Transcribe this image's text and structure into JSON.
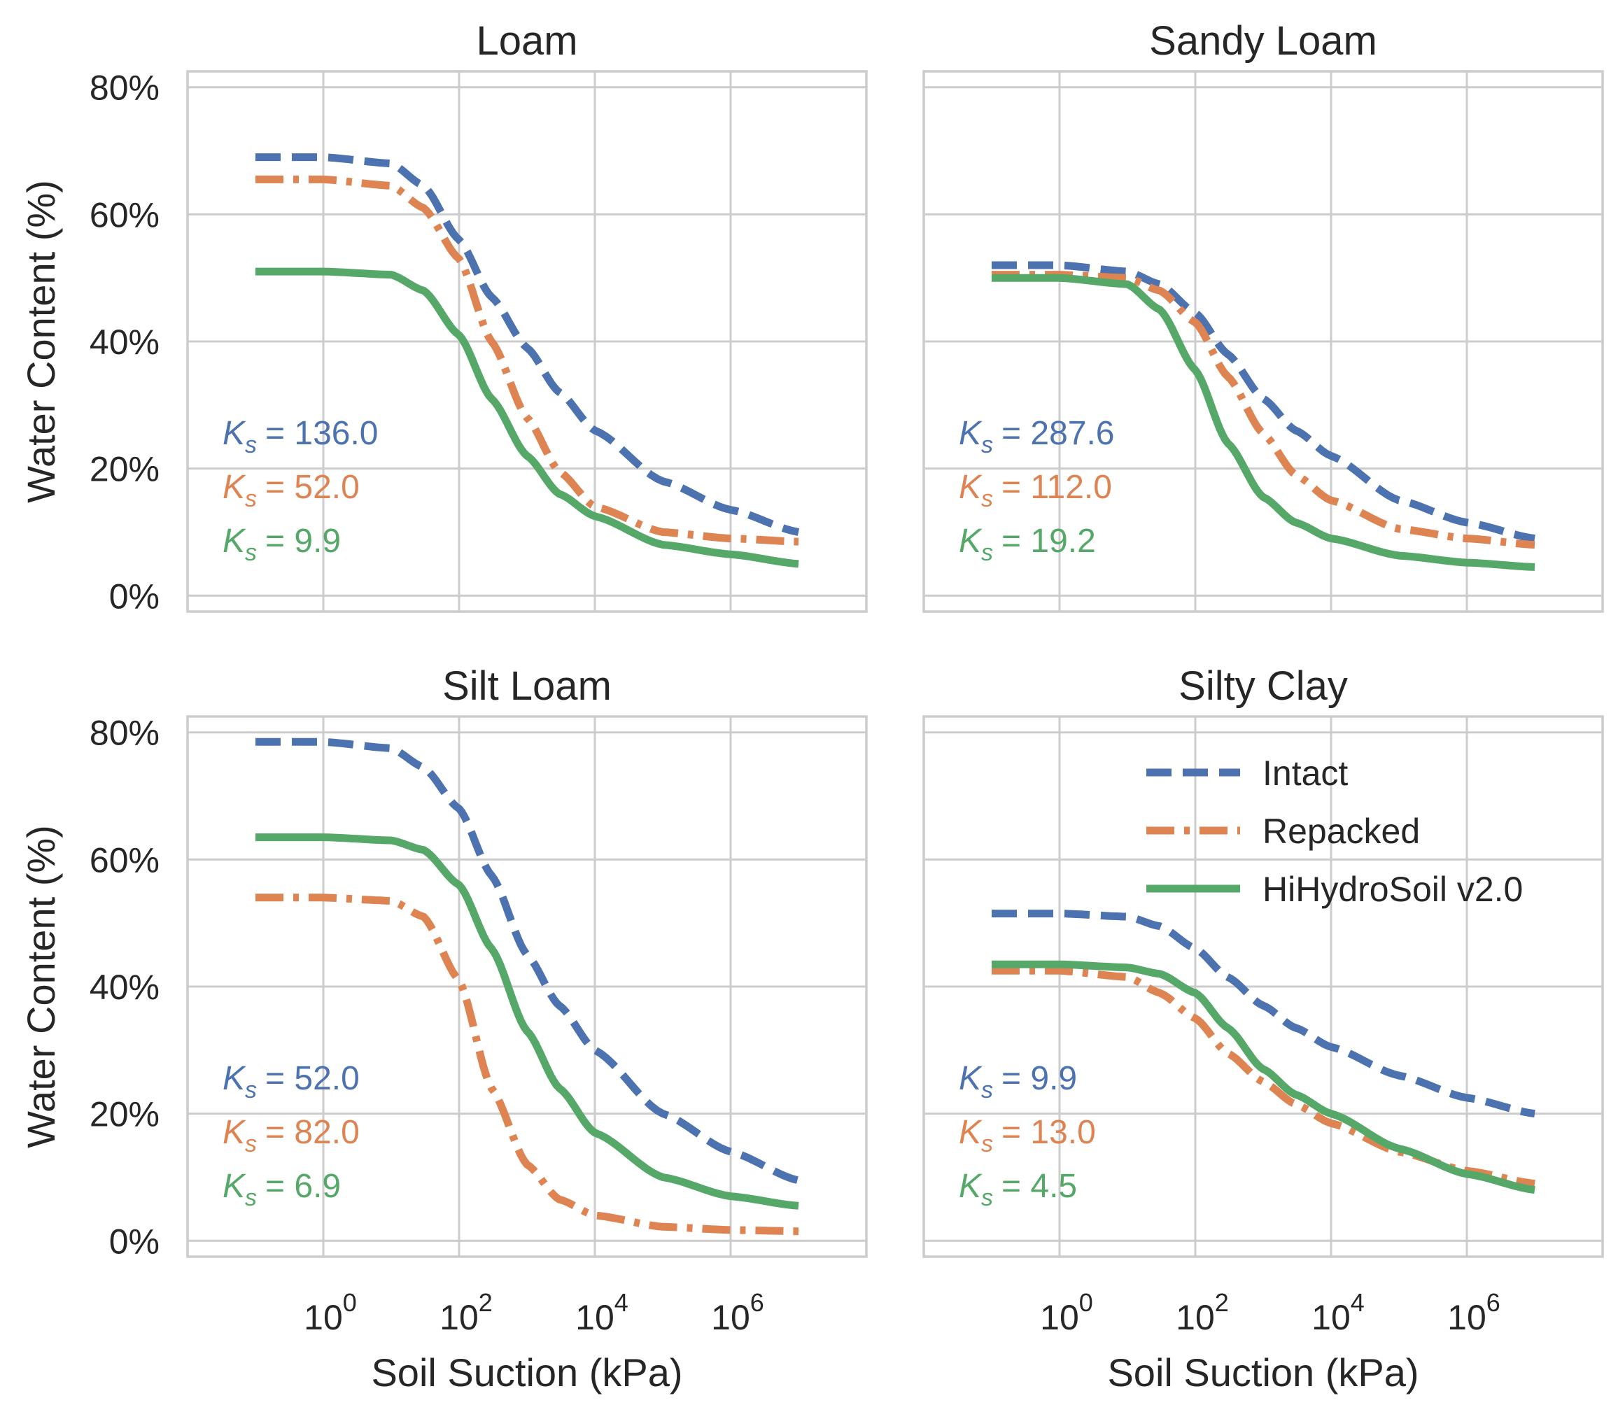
{
  "chart_data": [
    {
      "type": "line",
      "title": "Loam",
      "xlabel": "",
      "ylabel": "Water Content (%)",
      "xscale": "log",
      "xlim": [
        0.01,
        100000000
      ],
      "ylim": [
        -0.025,
        0.825
      ],
      "yticks": [
        "0%",
        "20%",
        "40%",
        "60%",
        "80%"
      ],
      "xticks": [],
      "series": [
        {
          "name": "Intact",
          "style": "dashed",
          "color": "#4c72b0",
          "x": [
            0.1,
            1,
            10,
            30,
            100,
            300,
            1000,
            3000,
            10000,
            100000,
            1000000,
            10000000
          ],
          "y": [
            0.69,
            0.69,
            0.68,
            0.645,
            0.56,
            0.47,
            0.39,
            0.32,
            0.26,
            0.18,
            0.135,
            0.1
          ]
        },
        {
          "name": "Repacked",
          "style": "dashdot",
          "color": "#dd8452",
          "x": [
            0.1,
            1,
            10,
            30,
            100,
            300,
            1000,
            3000,
            10000,
            100000,
            1000000,
            10000000
          ],
          "y": [
            0.655,
            0.655,
            0.645,
            0.61,
            0.53,
            0.4,
            0.28,
            0.195,
            0.14,
            0.1,
            0.09,
            0.085
          ]
        },
        {
          "name": "HiHydroSoil v2.0",
          "style": "solid",
          "color": "#55a868",
          "x": [
            0.1,
            1,
            10,
            30,
            100,
            300,
            1000,
            3000,
            10000,
            100000,
            1000000,
            10000000
          ],
          "y": [
            0.51,
            0.51,
            0.505,
            0.48,
            0.41,
            0.31,
            0.22,
            0.16,
            0.125,
            0.08,
            0.065,
            0.05
          ]
        }
      ],
      "annotations": [
        {
          "label": "K_s = 136.0",
          "sym": "K",
          "sub": "s",
          "value": "= 136.0",
          "color": "#4c72b0"
        },
        {
          "label": "K_s = 52.0",
          "sym": "K",
          "sub": "s",
          "value": "= 52.0",
          "color": "#dd8452"
        },
        {
          "label": "K_s = 9.9",
          "sym": "K",
          "sub": "s",
          "value": "= 9.9",
          "color": "#55a868"
        }
      ]
    },
    {
      "type": "line",
      "title": "Sandy Loam",
      "xlabel": "",
      "ylabel": "",
      "xscale": "log",
      "xlim": [
        0.01,
        100000000
      ],
      "ylim": [
        -0.025,
        0.825
      ],
      "yticks": [],
      "xticks": [],
      "series": [
        {
          "name": "Intact",
          "style": "dashed",
          "color": "#4c72b0",
          "x": [
            0.1,
            1,
            10,
            30,
            100,
            300,
            1000,
            3000,
            10000,
            100000,
            1000000,
            10000000
          ],
          "y": [
            0.52,
            0.52,
            0.51,
            0.49,
            0.445,
            0.38,
            0.31,
            0.26,
            0.22,
            0.15,
            0.115,
            0.09
          ]
        },
        {
          "name": "Repacked",
          "style": "dashdot",
          "color": "#dd8452",
          "x": [
            0.1,
            1,
            10,
            30,
            100,
            300,
            1000,
            3000,
            10000,
            100000,
            1000000,
            10000000
          ],
          "y": [
            0.505,
            0.505,
            0.5,
            0.48,
            0.43,
            0.345,
            0.255,
            0.19,
            0.15,
            0.105,
            0.09,
            0.08
          ]
        },
        {
          "name": "HiHydroSoil v2.0",
          "style": "solid",
          "color": "#55a868",
          "x": [
            0.1,
            1,
            10,
            30,
            100,
            300,
            1000,
            3000,
            10000,
            100000,
            1000000,
            10000000
          ],
          "y": [
            0.5,
            0.5,
            0.49,
            0.45,
            0.355,
            0.24,
            0.155,
            0.115,
            0.09,
            0.063,
            0.052,
            0.045
          ]
        }
      ],
      "annotations": [
        {
          "label": "K_s = 287.6",
          "sym": "K",
          "sub": "s",
          "value": "= 287.6",
          "color": "#4c72b0"
        },
        {
          "label": "K_s = 112.0",
          "sym": "K",
          "sub": "s",
          "value": "= 112.0",
          "color": "#dd8452"
        },
        {
          "label": "K_s = 19.2",
          "sym": "K",
          "sub": "s",
          "value": "= 19.2",
          "color": "#55a868"
        }
      ]
    },
    {
      "type": "line",
      "title": "Silt Loam",
      "xlabel": "Soil Suction (kPa)",
      "ylabel": "Water Content (%)",
      "xscale": "log",
      "xlim": [
        0.01,
        100000000
      ],
      "ylim": [
        -0.025,
        0.825
      ],
      "yticks": [
        "0%",
        "20%",
        "40%",
        "60%",
        "80%"
      ],
      "xticks": [
        {
          "base": "10",
          "exp": "0",
          "value": 1
        },
        {
          "base": "10",
          "exp": "2",
          "value": 100
        },
        {
          "base": "10",
          "exp": "4",
          "value": 10000
        },
        {
          "base": "10",
          "exp": "6",
          "value": 1000000
        }
      ],
      "series": [
        {
          "name": "Intact",
          "style": "dashed",
          "color": "#4c72b0",
          "x": [
            0.1,
            1,
            10,
            30,
            100,
            300,
            1000,
            3000,
            10000,
            100000,
            1000000,
            10000000
          ],
          "y": [
            0.785,
            0.785,
            0.775,
            0.745,
            0.68,
            0.575,
            0.45,
            0.37,
            0.3,
            0.2,
            0.14,
            0.095
          ]
        },
        {
          "name": "Repacked",
          "style": "dashdot",
          "color": "#dd8452",
          "x": [
            0.1,
            1,
            10,
            30,
            100,
            300,
            1000,
            3000,
            10000,
            100000,
            1000000,
            10000000
          ],
          "y": [
            0.54,
            0.54,
            0.535,
            0.51,
            0.41,
            0.24,
            0.12,
            0.065,
            0.04,
            0.022,
            0.017,
            0.015
          ]
        },
        {
          "name": "HiHydroSoil v2.0",
          "style": "solid",
          "color": "#55a868",
          "x": [
            0.1,
            1,
            10,
            30,
            100,
            300,
            1000,
            3000,
            10000,
            100000,
            1000000,
            10000000
          ],
          "y": [
            0.635,
            0.635,
            0.63,
            0.615,
            0.56,
            0.46,
            0.33,
            0.24,
            0.17,
            0.1,
            0.07,
            0.055
          ]
        }
      ],
      "annotations": [
        {
          "label": "K_s = 52.0",
          "sym": "K",
          "sub": "s",
          "value": "= 52.0",
          "color": "#4c72b0"
        },
        {
          "label": "K_s = 82.0",
          "sym": "K",
          "sub": "s",
          "value": "= 82.0",
          "color": "#dd8452"
        },
        {
          "label": "K_s = 6.9",
          "sym": "K",
          "sub": "s",
          "value": "= 6.9",
          "color": "#55a868"
        }
      ]
    },
    {
      "type": "line",
      "title": "Silty Clay",
      "xlabel": "Soil Suction (kPa)",
      "ylabel": "",
      "xscale": "log",
      "xlim": [
        0.01,
        100000000
      ],
      "ylim": [
        -0.025,
        0.825
      ],
      "yticks": [],
      "xticks": [
        {
          "base": "10",
          "exp": "0",
          "value": 1
        },
        {
          "base": "10",
          "exp": "2",
          "value": 100
        },
        {
          "base": "10",
          "exp": "4",
          "value": 10000
        },
        {
          "base": "10",
          "exp": "6",
          "value": 1000000
        }
      ],
      "legend": {
        "placement": "upper-right",
        "entries": [
          "Intact",
          "Repacked",
          "HiHydroSoil v2.0"
        ]
      },
      "series": [
        {
          "name": "Intact",
          "style": "dashed",
          "color": "#4c72b0",
          "x": [
            0.1,
            1,
            10,
            30,
            100,
            300,
            1000,
            3000,
            10000,
            100000,
            1000000,
            10000000
          ],
          "y": [
            0.515,
            0.515,
            0.51,
            0.495,
            0.46,
            0.415,
            0.37,
            0.335,
            0.305,
            0.26,
            0.225,
            0.2
          ]
        },
        {
          "name": "Repacked",
          "style": "dashdot",
          "color": "#dd8452",
          "x": [
            0.1,
            1,
            10,
            30,
            100,
            300,
            1000,
            3000,
            10000,
            100000,
            1000000,
            10000000
          ],
          "y": [
            0.425,
            0.425,
            0.415,
            0.39,
            0.35,
            0.295,
            0.25,
            0.215,
            0.185,
            0.14,
            0.11,
            0.09
          ]
        },
        {
          "name": "HiHydroSoil v2.0",
          "style": "solid",
          "color": "#55a868",
          "x": [
            0.1,
            1,
            10,
            30,
            100,
            300,
            1000,
            3000,
            10000,
            100000,
            1000000,
            10000000
          ],
          "y": [
            0.435,
            0.435,
            0.43,
            0.42,
            0.39,
            0.335,
            0.27,
            0.23,
            0.2,
            0.145,
            0.105,
            0.08
          ]
        }
      ],
      "annotations": [
        {
          "label": "K_s = 9.9",
          "sym": "K",
          "sub": "s",
          "value": "= 9.9",
          "color": "#4c72b0"
        },
        {
          "label": "K_s = 13.0",
          "sym": "K",
          "sub": "s",
          "value": "= 13.0",
          "color": "#dd8452"
        },
        {
          "label": "K_s = 4.5",
          "sym": "K",
          "sub": "s",
          "value": "= 4.5",
          "color": "#55a868"
        }
      ]
    }
  ]
}
